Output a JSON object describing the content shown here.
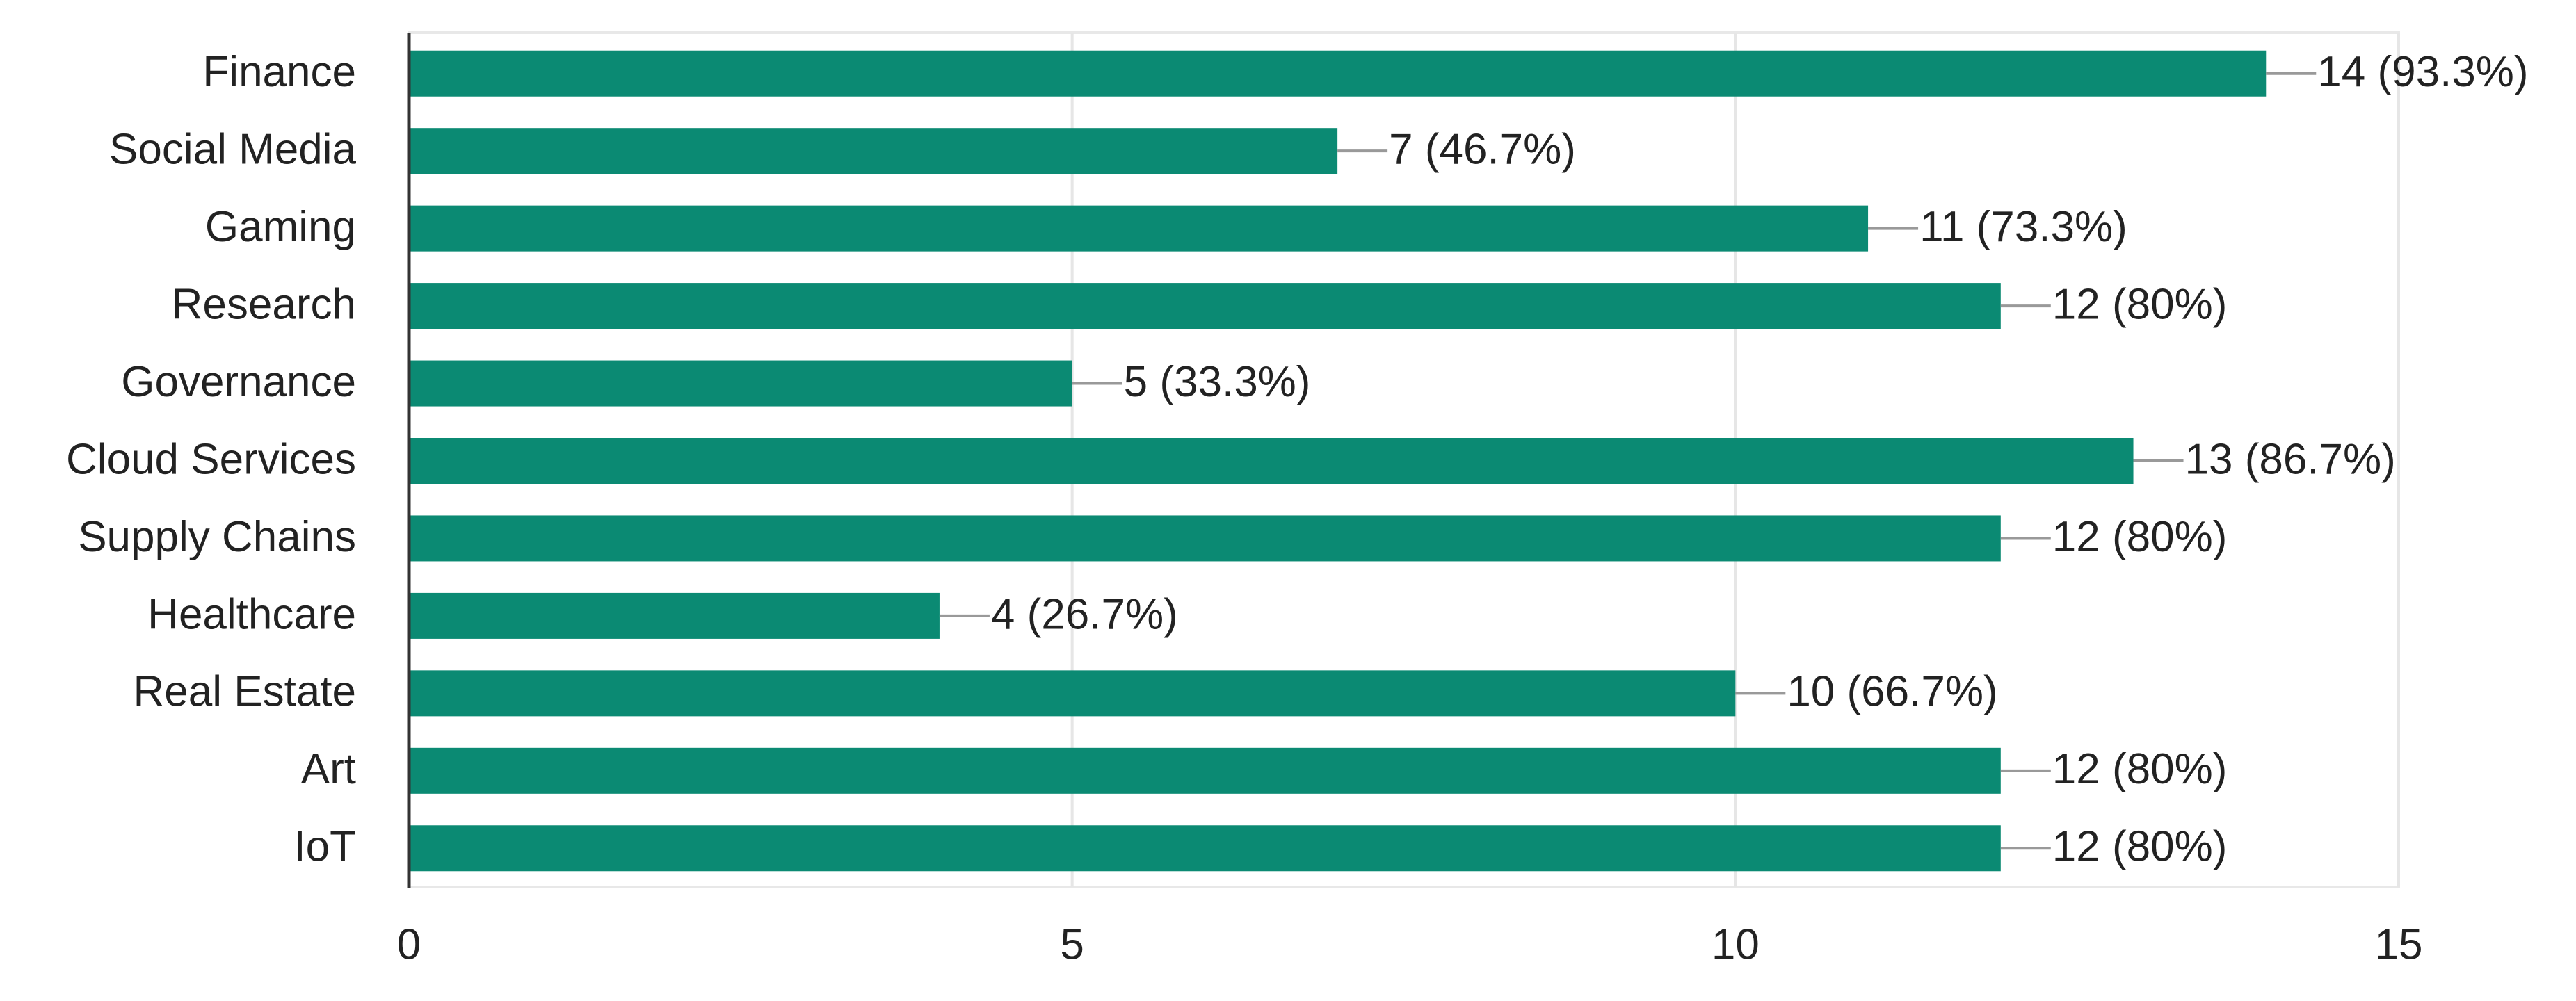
{
  "chart_data": {
    "type": "hbar",
    "categories": [
      "Finance",
      "Social Media",
      "Gaming",
      "Research",
      "Governance",
      "Cloud Services",
      "Supply Chains",
      "Healthcare",
      "Real Estate",
      "Art",
      "IoT"
    ],
    "values": [
      14,
      7,
      11,
      12,
      5,
      13,
      12,
      4,
      10,
      12,
      12
    ],
    "value_labels": [
      "14 (93.3%)",
      "7 (46.7%)",
      "11 (73.3%)",
      "12 (80%)",
      "5 (33.3%)",
      "13 (86.7%)",
      "12 (80%)",
      "4 (26.7%)",
      "10 (66.7%)",
      "12 (80%)",
      "12 (80%)"
    ],
    "color": "#0b8a73",
    "xlim": [
      0,
      15
    ],
    "xticks": [
      0,
      5,
      10,
      15
    ],
    "grid": true
  }
}
